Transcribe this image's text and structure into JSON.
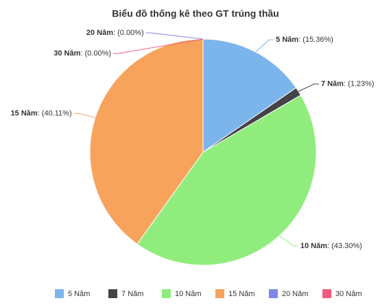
{
  "chart_data": {
    "type": "pie",
    "title": "Biểu đồ thống kê theo GT trúng thầu",
    "categories": [
      "5 Năm",
      "7 Năm",
      "10 Năm",
      "15 Năm",
      "20 Năm",
      "30 Năm"
    ],
    "values": [
      15.36,
      1.23,
      43.3,
      40.11,
      0,
      0
    ],
    "value_labels": [
      ": (15.36%)",
      ": (1.23%)",
      ": (43.30%)",
      ": (40.11%)",
      ": (0.00%)",
      ": (0.00%)"
    ],
    "colors": [
      "#7cb5ec",
      "#434348",
      "#90ed7d",
      "#f7a35c",
      "#8085e9",
      "#f15c80"
    ]
  }
}
